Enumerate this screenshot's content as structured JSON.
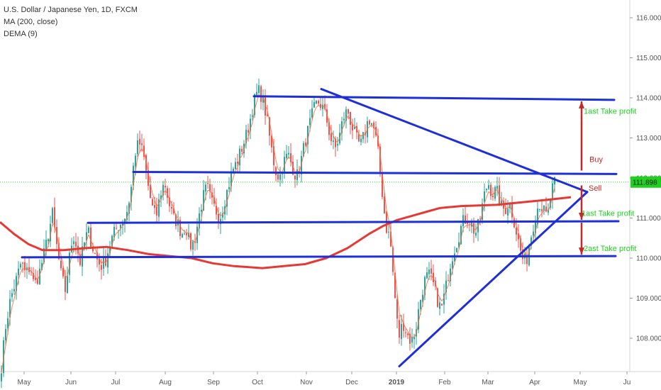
{
  "legend": {
    "title": "U.S. Dollar / Japanese Yen, 1D, FXCM",
    "ma": "MA (200, close)",
    "dema": "DEMA (9)"
  },
  "chart_data": {
    "type": "candlestick",
    "y_ticks": [
      "108.000",
      "109.000",
      "110.000",
      "111.000",
      "112.000",
      "113.000",
      "114.000",
      "115.000",
      "116.000"
    ],
    "x_ticks": [
      "May",
      "Jun",
      "Jul",
      "Aug",
      "Sep",
      "Oct",
      "Nov",
      "Dec",
      "2019",
      "Feb",
      "Mar",
      "Apr",
      "May",
      "Ju"
    ],
    "ylim": [
      107.2,
      116.3
    ],
    "current_price": "111.898",
    "current_price_value": 111.898,
    "colors": {
      "up": "#26a69a",
      "down": "#ef5350",
      "ma": "#e53935",
      "dema": "#ff7043",
      "trendline": "#1e2fd8",
      "price_line": "#2bd62b",
      "buy": "#c62828",
      "take_profit": "#1fd11f"
    },
    "ma_series": [
      [
        0,
        110.9
      ],
      [
        20,
        110.6
      ],
      [
        40,
        110.35
      ],
      [
        60,
        110.2
      ],
      [
        90,
        110.2
      ],
      [
        120,
        110.25
      ],
      [
        150,
        110.28
      ],
      [
        180,
        110.2
      ],
      [
        210,
        110.1
      ],
      [
        240,
        110.05
      ],
      [
        270,
        110.0
      ],
      [
        300,
        109.87
      ],
      [
        330,
        109.8
      ],
      [
        370,
        109.75
      ],
      [
        400,
        109.8
      ],
      [
        430,
        109.85
      ],
      [
        460,
        110.0
      ],
      [
        490,
        110.25
      ],
      [
        520,
        110.6
      ],
      [
        540,
        110.8
      ],
      [
        560,
        110.95
      ],
      [
        580,
        111.05
      ],
      [
        600,
        111.15
      ],
      [
        620,
        111.25
      ],
      [
        650,
        111.3
      ],
      [
        700,
        111.33
      ],
      [
        740,
        111.4
      ],
      [
        780,
        111.47
      ],
      [
        805,
        111.52
      ]
    ],
    "lines": [
      {
        "name": "resistance-114",
        "x1": 358,
        "y1": 114.04,
        "x2": 866,
        "y2": 113.95
      },
      {
        "name": "support-112",
        "x1": 188,
        "y1": 112.15,
        "x2": 869,
        "y2": 112.1
      },
      {
        "name": "support-111",
        "x1": 124,
        "y1": 110.88,
        "x2": 872,
        "y2": 110.92
      },
      {
        "name": "support-110",
        "x1": 31,
        "y1": 110.02,
        "x2": 868,
        "y2": 110.05
      },
      {
        "name": "descending-trend",
        "x1": 453,
        "y1": 114.22,
        "x2": 828,
        "y2": 111.65
      },
      {
        "name": "ascending-trend",
        "x1": 563,
        "y1": 107.3,
        "x2": 828,
        "y2": 111.65
      }
    ],
    "annotations": {
      "buy": "Buy",
      "sell": "Sell",
      "tp1_up": "1ast Take profit",
      "tp1_down": "1ast Take profit",
      "tp2_down": "2ast Take profit"
    },
    "targets": {
      "buy_level": 112.15,
      "sell_level": 111.85,
      "tp1_up": 113.95,
      "tp1_down": 110.92,
      "tp2_down": 110.05
    },
    "anchors": [
      [
        2,
        107.3
      ],
      [
        8,
        108.3
      ],
      [
        15,
        109.0
      ],
      [
        22,
        109.4
      ],
      [
        30,
        109.9
      ],
      [
        36,
        109.6
      ],
      [
        43,
        109.8
      ],
      [
        48,
        109.3
      ],
      [
        55,
        109.6
      ],
      [
        62,
        110.1
      ],
      [
        68,
        110.6
      ],
      [
        74,
        111.1
      ],
      [
        80,
        110.3
      ],
      [
        86,
        109.6
      ],
      [
        92,
        109.2
      ],
      [
        97,
        109.9
      ],
      [
        103,
        110.6
      ],
      [
        108,
        110.3
      ],
      [
        113,
        109.9
      ],
      [
        118,
        110.3
      ],
      [
        124,
        110.7
      ],
      [
        130,
        110.3
      ],
      [
        136,
        110.0
      ],
      [
        142,
        109.8
      ],
      [
        148,
        109.9
      ],
      [
        154,
        110.3
      ],
      [
        160,
        110.6
      ],
      [
        166,
        110.8
      ],
      [
        172,
        110.9
      ],
      [
        178,
        111.1
      ],
      [
        184,
        111.6
      ],
      [
        190,
        112.6
      ],
      [
        196,
        112.9
      ],
      [
        202,
        112.6
      ],
      [
        208,
        111.9
      ],
      [
        214,
        111.3
      ],
      [
        220,
        111.0
      ],
      [
        226,
        111.6
      ],
      [
        232,
        111.9
      ],
      [
        238,
        111.4
      ],
      [
        244,
        111.0
      ],
      [
        250,
        110.9
      ],
      [
        256,
        110.6
      ],
      [
        262,
        110.8
      ],
      [
        268,
        110.3
      ],
      [
        274,
        110.4
      ],
      [
        280,
        111.0
      ],
      [
        286,
        111.5
      ],
      [
        292,
        111.8
      ],
      [
        298,
        111.4
      ],
      [
        304,
        111.2
      ],
      [
        310,
        111.0
      ],
      [
        316,
        111.4
      ],
      [
        322,
        111.8
      ],
      [
        328,
        112.2
      ],
      [
        334,
        112.4
      ],
      [
        340,
        112.7
      ],
      [
        346,
        113.0
      ],
      [
        352,
        113.4
      ],
      [
        358,
        113.9
      ],
      [
        364,
        114.2
      ],
      [
        370,
        114.0
      ],
      [
        376,
        113.5
      ],
      [
        382,
        112.8
      ],
      [
        388,
        112.2
      ],
      [
        394,
        112.0
      ],
      [
        400,
        112.4
      ],
      [
        406,
        112.6
      ],
      [
        412,
        112.3
      ],
      [
        418,
        112.0
      ],
      [
        424,
        112.4
      ],
      [
        430,
        112.9
      ],
      [
        436,
        113.3
      ],
      [
        442,
        113.7
      ],
      [
        448,
        113.9
      ],
      [
        454,
        113.8
      ],
      [
        460,
        113.5
      ],
      [
        466,
        113.0
      ],
      [
        472,
        112.7
      ],
      [
        478,
        113.0
      ],
      [
        484,
        113.5
      ],
      [
        490,
        113.7
      ],
      [
        496,
        113.3
      ],
      [
        502,
        113.0
      ],
      [
        508,
        112.8
      ],
      [
        514,
        113.1
      ],
      [
        520,
        113.5
      ],
      [
        526,
        113.3
      ],
      [
        532,
        112.8
      ],
      [
        538,
        111.8
      ],
      [
        544,
        110.8
      ],
      [
        550,
        110.5
      ],
      [
        556,
        109.2
      ],
      [
        562,
        108.0
      ],
      [
        568,
        108.4
      ],
      [
        574,
        108.1
      ],
      [
        580,
        107.9
      ],
      [
        586,
        108.2
      ],
      [
        592,
        108.9
      ],
      [
        598,
        109.4
      ],
      [
        604,
        109.6
      ],
      [
        610,
        109.4
      ],
      [
        616,
        109.0
      ],
      [
        622,
        108.7
      ],
      [
        628,
        109.2
      ],
      [
        634,
        109.8
      ],
      [
        640,
        110.2
      ],
      [
        646,
        110.5
      ],
      [
        652,
        110.9
      ],
      [
        658,
        111.0
      ],
      [
        664,
        110.9
      ],
      [
        670,
        110.6
      ],
      [
        676,
        110.9
      ],
      [
        682,
        111.5
      ],
      [
        688,
        111.9
      ],
      [
        694,
        111.6
      ],
      [
        700,
        111.7
      ],
      [
        706,
        111.3
      ],
      [
        712,
        111.2
      ],
      [
        718,
        111.4
      ],
      [
        724,
        111.0
      ],
      [
        730,
        110.5
      ],
      [
        736,
        110.0
      ],
      [
        742,
        109.9
      ],
      [
        748,
        110.5
      ],
      [
        754,
        111.0
      ],
      [
        760,
        111.4
      ],
      [
        766,
        111.2
      ],
      [
        772,
        111.0
      ],
      [
        778,
        111.7
      ],
      [
        783,
        111.9
      ]
    ]
  }
}
